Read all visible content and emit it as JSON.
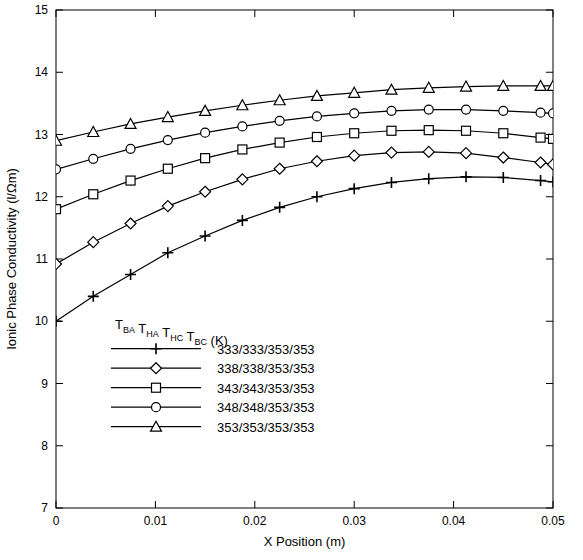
{
  "chart_data": {
    "type": "line",
    "x_label": "X Position (m)",
    "y_label": "Ionic Phase Conductivity (l/Ωm)",
    "legend_title": "TBA THA THC TBC (K)",
    "legend": "lower-left",
    "grid": false,
    "x": [
      0,
      0.00375,
      0.0075,
      0.01125,
      0.015,
      0.01875,
      0.0225,
      0.02625,
      0.03,
      0.03375,
      0.0375,
      0.04125,
      0.045,
      0.04875,
      0.05
    ],
    "xlim": [
      0,
      0.05
    ],
    "xticks": [
      0,
      0.01,
      0.02,
      0.03,
      0.04,
      0.05
    ],
    "ylim": [
      7,
      15
    ],
    "yticks": [
      7,
      8,
      9,
      10,
      11,
      12,
      13,
      14,
      15
    ],
    "series": [
      {
        "name": "333/333/353/353",
        "color": "#000000",
        "marker": "plus",
        "line_style": "solid",
        "values": [
          10.0,
          10.4,
          10.75,
          11.1,
          11.37,
          11.62,
          11.83,
          12.0,
          12.13,
          12.23,
          12.29,
          12.32,
          12.31,
          12.26,
          12.24
        ]
      },
      {
        "name": "338/338/353/353",
        "color": "#000000",
        "marker": "diamond",
        "line_style": "solid",
        "values": [
          10.92,
          11.27,
          11.57,
          11.85,
          12.08,
          12.28,
          12.45,
          12.57,
          12.66,
          12.71,
          12.72,
          12.7,
          12.63,
          12.55,
          12.52
        ]
      },
      {
        "name": "343/343/353/353",
        "color": "#000000",
        "marker": "square",
        "line_style": "solid",
        "values": [
          11.8,
          12.04,
          12.26,
          12.45,
          12.62,
          12.76,
          12.87,
          12.96,
          13.02,
          13.06,
          13.07,
          13.06,
          13.02,
          12.95,
          12.93
        ]
      },
      {
        "name": "348/348/353/353",
        "color": "#000000",
        "marker": "circle",
        "line_style": "solid",
        "values": [
          12.44,
          12.61,
          12.77,
          12.91,
          13.03,
          13.13,
          13.22,
          13.29,
          13.34,
          13.38,
          13.4,
          13.4,
          13.38,
          13.35,
          13.34
        ]
      },
      {
        "name": "353/353/353/353",
        "color": "#000000",
        "marker": "triangle",
        "line_style": "solid",
        "values": [
          12.9,
          13.04,
          13.17,
          13.28,
          13.38,
          13.47,
          13.55,
          13.62,
          13.67,
          13.72,
          13.75,
          13.77,
          13.78,
          13.78,
          13.78
        ]
      }
    ]
  }
}
